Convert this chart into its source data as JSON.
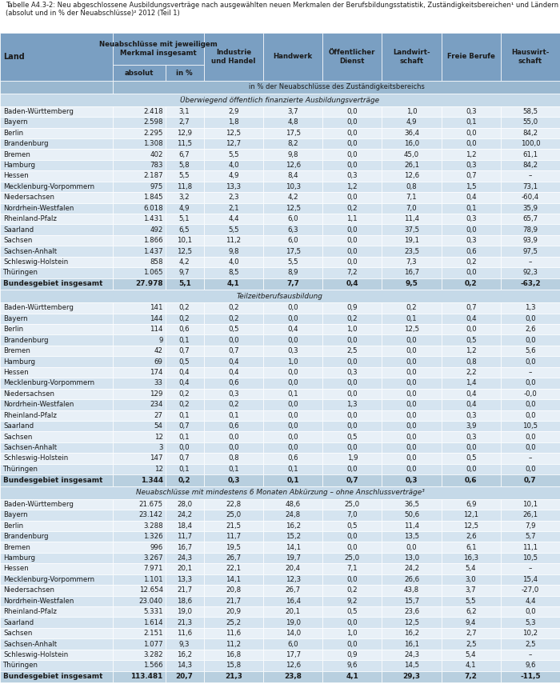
{
  "title": "Tabelle A4.3-2: Neu abgeschlossene Ausbildungsverträge nach ausgewählten neuen Merkmalen der Berufsbildungsstatistik, Zuständigkeitsbereichen¹ und Ländern (absolut und in % der Neuabschlüsse)² 2012 (Teil 1)",
  "section1_title": "Überwiegend öffentlich finanzierte Ausbildungsverträge",
  "section1_rows": [
    [
      "Baden-Württemberg",
      "2.418",
      "3,1",
      "2,9",
      "3,7",
      "0,0",
      "1,0",
      "0,3",
      "58,5"
    ],
    [
      "Bayern",
      "2.598",
      "2,7",
      "1,8",
      "4,8",
      "0,0",
      "4,9",
      "0,1",
      "55,0"
    ],
    [
      "Berlin",
      "2.295",
      "12,9",
      "12,5",
      "17,5",
      "0,0",
      "36,4",
      "0,0",
      "84,2"
    ],
    [
      "Brandenburg",
      "1.308",
      "11,5",
      "12,7",
      "8,2",
      "0,0",
      "16,0",
      "0,0",
      "100,0"
    ],
    [
      "Bremen",
      "402",
      "6,7",
      "5,5",
      "9,8",
      "0,0",
      "45,0",
      "1,2",
      "61,1"
    ],
    [
      "Hamburg",
      "783",
      "5,8",
      "4,0",
      "12,6",
      "0,0",
      "26,1",
      "0,3",
      "84,2"
    ],
    [
      "Hessen",
      "2.187",
      "5,5",
      "4,9",
      "8,4",
      "0,3",
      "12,6",
      "0,7",
      "–"
    ],
    [
      "Mecklenburg-Vorpommern",
      "975",
      "11,8",
      "13,3",
      "10,3",
      "1,2",
      "0,8",
      "1,5",
      "73,1"
    ],
    [
      "Niedersachsen",
      "1.845",
      "3,2",
      "2,3",
      "4,2",
      "0,0",
      "7,1",
      "0,4",
      "-60,4"
    ],
    [
      "Nordrhein-Westfalen",
      "6.018",
      "4,9",
      "2,1",
      "12,5",
      "0,2",
      "7,0",
      "0,1",
      "35,9"
    ],
    [
      "Rheinland-Pfalz",
      "1.431",
      "5,1",
      "4,4",
      "6,0",
      "1,1",
      "11,4",
      "0,3",
      "65,7"
    ],
    [
      "Saarland",
      "492",
      "6,5",
      "5,5",
      "6,3",
      "0,0",
      "37,5",
      "0,0",
      "78,9"
    ],
    [
      "Sachsen",
      "1.866",
      "10,1",
      "11,2",
      "6,0",
      "0,0",
      "19,1",
      "0,3",
      "93,9"
    ],
    [
      "Sachsen-Anhalt",
      "1.437",
      "12,5",
      "9,8",
      "17,5",
      "0,0",
      "23,5",
      "0,6",
      "97,5"
    ],
    [
      "Schleswig-Holstein",
      "858",
      "4,2",
      "4,0",
      "5,5",
      "0,0",
      "7,3",
      "0,2",
      "–"
    ],
    [
      "Thüringen",
      "1.065",
      "9,7",
      "8,5",
      "8,9",
      "7,2",
      "16,7",
      "0,0",
      "92,3"
    ]
  ],
  "section1_total": [
    "Bundesgebiet insgesamt",
    "27.978",
    "5,1",
    "4,1",
    "7,7",
    "0,4",
    "9,5",
    "0,2",
    "-63,2"
  ],
  "section2_title": "Teilzeitberufsausbildung",
  "section2_rows": [
    [
      "Baden-Württemberg",
      "141",
      "0,2",
      "0,2",
      "0,0",
      "0,9",
      "0,2",
      "0,7",
      "1,3"
    ],
    [
      "Bayern",
      "144",
      "0,2",
      "0,2",
      "0,0",
      "0,2",
      "0,1",
      "0,4",
      "0,0"
    ],
    [
      "Berlin",
      "114",
      "0,6",
      "0,5",
      "0,4",
      "1,0",
      "12,5",
      "0,0",
      "2,6"
    ],
    [
      "Brandenburg",
      "9",
      "0,1",
      "0,0",
      "0,0",
      "0,0",
      "0,0",
      "0,5",
      "0,0"
    ],
    [
      "Bremen",
      "42",
      "0,7",
      "0,7",
      "0,3",
      "2,5",
      "0,0",
      "1,2",
      "5,6"
    ],
    [
      "Hamburg",
      "69",
      "0,5",
      "0,4",
      "1,0",
      "0,0",
      "0,0",
      "0,8",
      "0,0"
    ],
    [
      "Hessen",
      "174",
      "0,4",
      "0,4",
      "0,0",
      "0,3",
      "0,0",
      "2,2",
      "–"
    ],
    [
      "Mecklenburg-Vorpommern",
      "33",
      "0,4",
      "0,6",
      "0,0",
      "0,0",
      "0,0",
      "1,4",
      "0,0"
    ],
    [
      "Niedersachsen",
      "129",
      "0,2",
      "0,3",
      "0,1",
      "0,0",
      "0,0",
      "0,4",
      "-0,0"
    ],
    [
      "Nordrhein-Westfalen",
      "234",
      "0,2",
      "0,2",
      "0,0",
      "1,3",
      "0,0",
      "0,4",
      "0,0"
    ],
    [
      "Rheinland-Pfalz",
      "27",
      "0,1",
      "0,1",
      "0,0",
      "0,0",
      "0,0",
      "0,3",
      "0,0"
    ],
    [
      "Saarland",
      "54",
      "0,7",
      "0,6",
      "0,0",
      "0,0",
      "0,0",
      "3,9",
      "10,5"
    ],
    [
      "Sachsen",
      "12",
      "0,1",
      "0,0",
      "0,0",
      "0,5",
      "0,0",
      "0,3",
      "0,0"
    ],
    [
      "Sachsen-Anhalt",
      "3",
      "0,0",
      "0,0",
      "0,0",
      "0,0",
      "0,0",
      "0,0",
      "0,0"
    ],
    [
      "Schleswig-Holstein",
      "147",
      "0,7",
      "0,8",
      "0,6",
      "1,9",
      "0,0",
      "0,5",
      "–"
    ],
    [
      "Thüringen",
      "12",
      "0,1",
      "0,1",
      "0,1",
      "0,0",
      "0,0",
      "0,0",
      "0,0"
    ]
  ],
  "section2_total": [
    "Bundesgebiet insgesamt",
    "1.344",
    "0,2",
    "0,3",
    "0,1",
    "0,7",
    "0,3",
    "0,6",
    "0,7"
  ],
  "section3_title": "Neuabschlüsse mit mindestens 6 Monaten Abkürzung – ohne Anschlussverträge³",
  "section3_rows": [
    [
      "Baden-Württemberg",
      "21.675",
      "28,0",
      "22,8",
      "48,6",
      "25,0",
      "36,5",
      "6,9",
      "10,1"
    ],
    [
      "Bayern",
      "23.142",
      "24,2",
      "25,0",
      "24,8",
      "7,0",
      "50,6",
      "12,1",
      "26,1"
    ],
    [
      "Berlin",
      "3.288",
      "18,4",
      "21,5",
      "16,2",
      "0,5",
      "11,4",
      "12,5",
      "7,9"
    ],
    [
      "Brandenburg",
      "1.326",
      "11,7",
      "11,7",
      "15,2",
      "0,0",
      "13,5",
      "2,6",
      "5,7"
    ],
    [
      "Bremen",
      "996",
      "16,7",
      "19,5",
      "14,1",
      "0,0",
      "0,0",
      "6,1",
      "11,1"
    ],
    [
      "Hamburg",
      "3.267",
      "24,3",
      "26,7",
      "19,7",
      "25,0",
      "13,0",
      "16,3",
      "10,5"
    ],
    [
      "Hessen",
      "7.971",
      "20,1",
      "22,1",
      "20,4",
      "7,1",
      "24,2",
      "5,4",
      "–"
    ],
    [
      "Mecklenburg-Vorpommern",
      "1.101",
      "13,3",
      "14,1",
      "12,3",
      "0,0",
      "26,6",
      "3,0",
      "15,4"
    ],
    [
      "Niedersachsen",
      "12.654",
      "21,7",
      "20,8",
      "26,7",
      "0,2",
      "43,8",
      "3,7",
      "-27,0"
    ],
    [
      "Nordrhein-Westfalen",
      "23.040",
      "18,6",
      "21,7",
      "16,4",
      "9,2",
      "15,7",
      "5,5",
      "4,4"
    ],
    [
      "Rheinland-Pfalz",
      "5.331",
      "19,0",
      "20,9",
      "20,1",
      "0,5",
      "23,6",
      "6,2",
      "0,0"
    ],
    [
      "Saarland",
      "1.614",
      "21,3",
      "25,2",
      "19,0",
      "0,0",
      "12,5",
      "9,4",
      "5,3"
    ],
    [
      "Sachsen",
      "2.151",
      "11,6",
      "11,6",
      "14,0",
      "1,0",
      "16,2",
      "2,7",
      "10,2"
    ],
    [
      "Sachsen-Anhalt",
      "1.077",
      "9,3",
      "11,2",
      "6,0",
      "0,0",
      "16,1",
      "2,5",
      "2,5"
    ],
    [
      "Schleswig-Holstein",
      "3.282",
      "16,2",
      "16,8",
      "17,7",
      "0,9",
      "24,3",
      "5,4",
      "–"
    ],
    [
      "Thüringen",
      "1.566",
      "14,3",
      "15,8",
      "12,6",
      "9,6",
      "14,5",
      "4,1",
      "9,6"
    ]
  ],
  "section3_total": [
    "Bundesgebiet insgesamt",
    "113.481",
    "20,7",
    "21,3",
    "23,8",
    "4,1",
    "29,3",
    "7,2",
    "-11,5"
  ],
  "header_bg": "#7a9fc2",
  "subheader_bg": "#9ab8d0",
  "section_title_bg": "#c5d9e8",
  "row_light_bg": "#e8f0f7",
  "row_dark_bg": "#d5e4f0",
  "total_bg": "#b8cfdf",
  "border_color": "#ffffff"
}
